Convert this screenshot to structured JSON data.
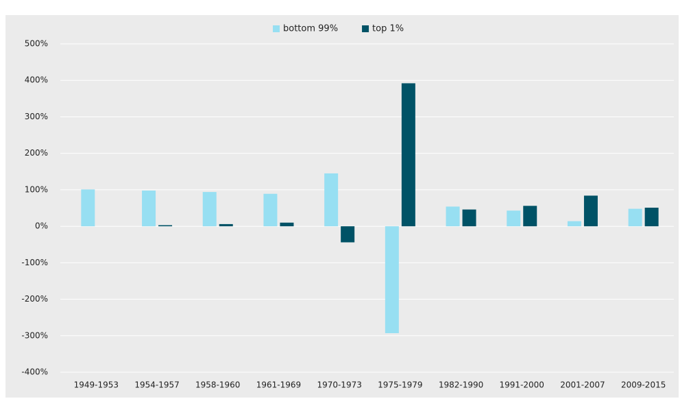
{
  "chart_data": {
    "type": "bar",
    "categories": [
      "1949-1953",
      "1954-1957",
      "1958-1960",
      "1961-1969",
      "1970-1973",
      "1975-1979",
      "1982-1990",
      "1991-2000",
      "2001-2007",
      "2009-2015"
    ],
    "series": [
      {
        "name": "bottom 99%",
        "color": "#97dff2",
        "values": [
          101,
          98,
          94,
          89,
          145,
          -293,
          54,
          43,
          14,
          48
        ]
      },
      {
        "name": "top 1%",
        "color": "#005266",
        "values": [
          0,
          3,
          6,
          10,
          -44,
          392,
          46,
          56,
          84,
          51
        ]
      }
    ],
    "ylim": [
      -400,
      500
    ],
    "yticks": [
      {
        "value": -400,
        "label": "-400%"
      },
      {
        "value": -300,
        "label": "-300%"
      },
      {
        "value": -200,
        "label": "-200%"
      },
      {
        "value": -100,
        "label": "-100%"
      },
      {
        "value": 0,
        "label": "0%"
      },
      {
        "value": 100,
        "label": "100%"
      },
      {
        "value": 200,
        "label": "200%"
      },
      {
        "value": 300,
        "label": "300%"
      },
      {
        "value": 400,
        "label": "400%"
      },
      {
        "value": 500,
        "label": "500%"
      }
    ],
    "grid": true,
    "legend": "top"
  }
}
